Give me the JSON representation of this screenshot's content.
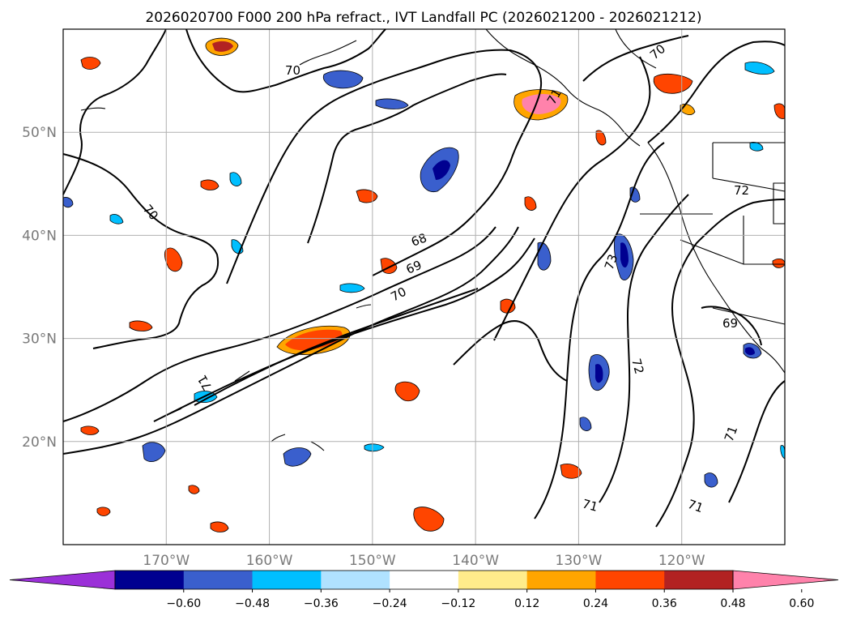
{
  "title": "2026020700 F000 200 hPa refract., IVT Landfall PC (2026021200 - 2026021212)",
  "map": {
    "lon_range": [
      -180,
      -110
    ],
    "lat_range": [
      10,
      60
    ],
    "lat_ticks": [
      {
        "value": 20,
        "label": "20°N"
      },
      {
        "value": 30,
        "label": "30°N"
      },
      {
        "value": 40,
        "label": "40°N"
      },
      {
        "value": 50,
        "label": "50°N"
      }
    ],
    "lon_ticks": [
      {
        "value": -170,
        "label": "170°W"
      },
      {
        "value": -160,
        "label": "160°W"
      },
      {
        "value": -150,
        "label": "150°W"
      },
      {
        "value": -140,
        "label": "140°W"
      },
      {
        "value": -130,
        "label": "130°W"
      },
      {
        "value": -120,
        "label": "120°W"
      }
    ],
    "gridlines": true,
    "contour_labels": [
      "70",
      "70",
      "68",
      "69",
      "70",
      "71",
      "72",
      "73",
      "72",
      "69",
      "71",
      "71",
      "71",
      "71",
      "70"
    ]
  },
  "colorbar": {
    "ticks": [
      "−0.60",
      "−0.48",
      "−0.36",
      "−0.24",
      "−0.12",
      "0.12",
      "0.24",
      "0.36",
      "0.48",
      "0.60"
    ],
    "colors": [
      "#9b30d8",
      "#000090",
      "#3a5fcd",
      "#00bfff",
      "#b0e2ff",
      "#ffffff",
      "#ffec8b",
      "#ffa500",
      "#ff4500",
      "#b22222",
      "#ff82ab"
    ]
  }
}
